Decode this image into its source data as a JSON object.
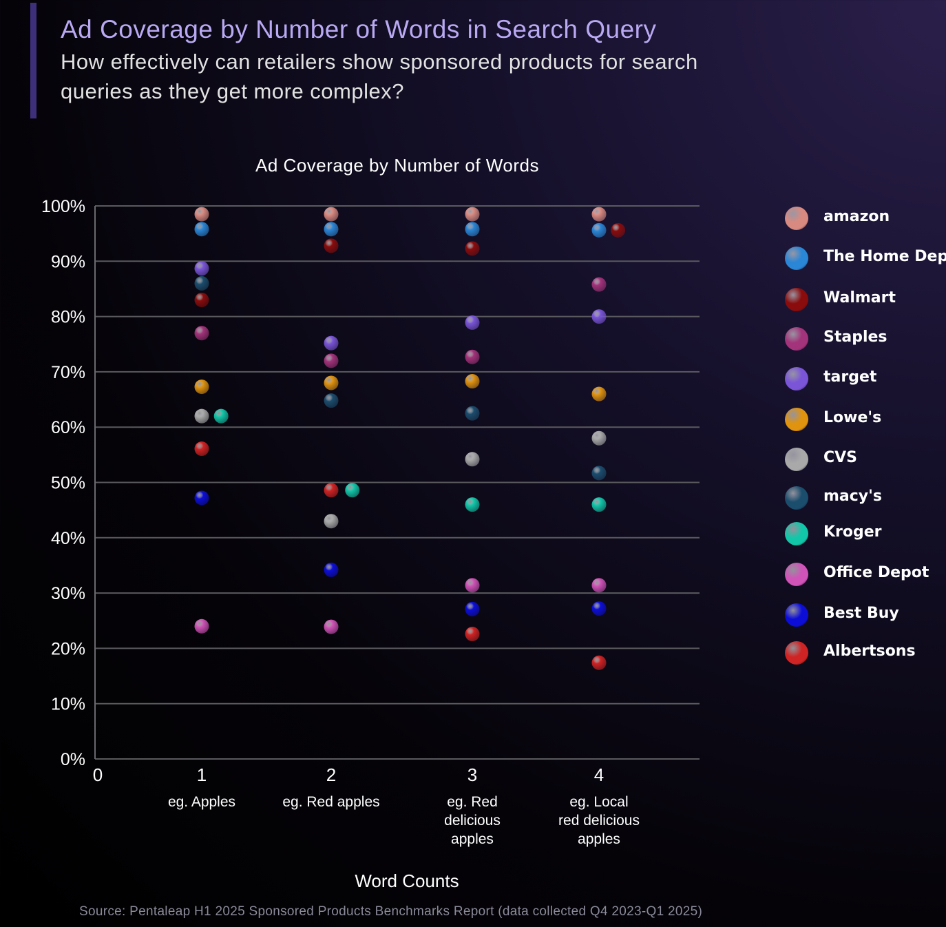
{
  "header": {
    "title": "Ad Coverage by Number of Words in Search Query",
    "subtitle": "How effectively can retailers show sponsored products for search queries as they get more complex?"
  },
  "source": "Source: Pentaleap H1 2025 Sponsored Products Benchmarks Report (data collected Q4 2023-Q1 2025)",
  "chart_data": {
    "type": "scatter",
    "title": "Ad Coverage by Number of Words",
    "xlabel": "Word Counts",
    "ylabel": "",
    "xlim": [
      0,
      4.7
    ],
    "ylim": [
      0,
      100
    ],
    "y_ticks": [
      "0%",
      "10%",
      "20%",
      "30%",
      "40%",
      "50%",
      "60%",
      "70%",
      "80%",
      "90%",
      "100%"
    ],
    "x_ticks": [
      "0",
      "1",
      "2",
      "3",
      "4"
    ],
    "x_tick_values": [
      0,
      1,
      2,
      3,
      4
    ],
    "x_sublabels": [
      {
        "x": 1,
        "text": "eg. Apples"
      },
      {
        "x": 2,
        "text": "eg. Red apples"
      },
      {
        "x": 3,
        "text": "eg. Red delicious apples"
      },
      {
        "x": 4,
        "text": "eg. Local red delicious apples"
      }
    ],
    "grid": true,
    "legend_position": "right",
    "series": [
      {
        "name": "amazon",
        "color": "#d98a80",
        "points": [
          [
            1,
            98.5
          ],
          [
            2,
            98.5
          ],
          [
            3,
            98.5
          ],
          [
            4,
            98.5
          ]
        ]
      },
      {
        "name": "The Home Depot",
        "color": "#2a86d6",
        "points": [
          [
            1,
            95.8
          ],
          [
            2,
            95.8
          ],
          [
            3,
            95.8
          ],
          [
            4,
            95.6
          ]
        ]
      },
      {
        "name": "Walmart",
        "color": "#8a0c0c",
        "points": [
          [
            1,
            83
          ],
          [
            2,
            92.8
          ],
          [
            3,
            92.3
          ],
          [
            4.15,
            95.6
          ]
        ]
      },
      {
        "name": "Staples",
        "color": "#a3337a",
        "points": [
          [
            1,
            77
          ],
          [
            2,
            72
          ],
          [
            3,
            72.7
          ],
          [
            4,
            85.8
          ]
        ]
      },
      {
        "name": "target",
        "color": "#7a55d8",
        "points": [
          [
            1,
            88.7
          ],
          [
            2,
            75.2
          ],
          [
            3,
            78.9
          ],
          [
            4,
            80
          ]
        ]
      },
      {
        "name": "Lowe's",
        "color": "#e0930f",
        "points": [
          [
            1,
            67.3
          ],
          [
            2,
            68
          ],
          [
            3,
            68.3
          ],
          [
            4,
            66
          ]
        ]
      },
      {
        "name": "CVS",
        "color": "#a9a9a9",
        "points": [
          [
            1,
            62
          ],
          [
            2,
            43
          ],
          [
            3,
            54.2
          ],
          [
            4,
            58
          ]
        ]
      },
      {
        "name": "macy's",
        "color": "#1b4d6d",
        "points": [
          [
            1,
            86
          ],
          [
            2,
            64.8
          ],
          [
            3,
            62.5
          ],
          [
            4,
            51.7
          ]
        ]
      },
      {
        "name": "Kroger",
        "color": "#12c7a9",
        "points": [
          [
            1.15,
            62
          ],
          [
            2.15,
            48.6
          ],
          [
            3,
            46
          ],
          [
            4,
            46
          ]
        ]
      },
      {
        "name": "Office Depot",
        "color": "#d053b8",
        "points": [
          [
            1,
            24
          ],
          [
            2,
            23.9
          ],
          [
            3,
            31.4
          ],
          [
            4,
            31.4
          ]
        ]
      },
      {
        "name": "Best Buy",
        "color": "#0c0ed8",
        "points": [
          [
            1,
            47.2
          ],
          [
            2,
            34.2
          ],
          [
            3,
            27.1
          ],
          [
            4,
            27.2
          ]
        ]
      },
      {
        "name": "Albertsons",
        "color": "#d02323",
        "points": [
          [
            1,
            56.1
          ],
          [
            2,
            48.6
          ],
          [
            3,
            22.6
          ],
          [
            4,
            17.4
          ]
        ]
      }
    ]
  }
}
